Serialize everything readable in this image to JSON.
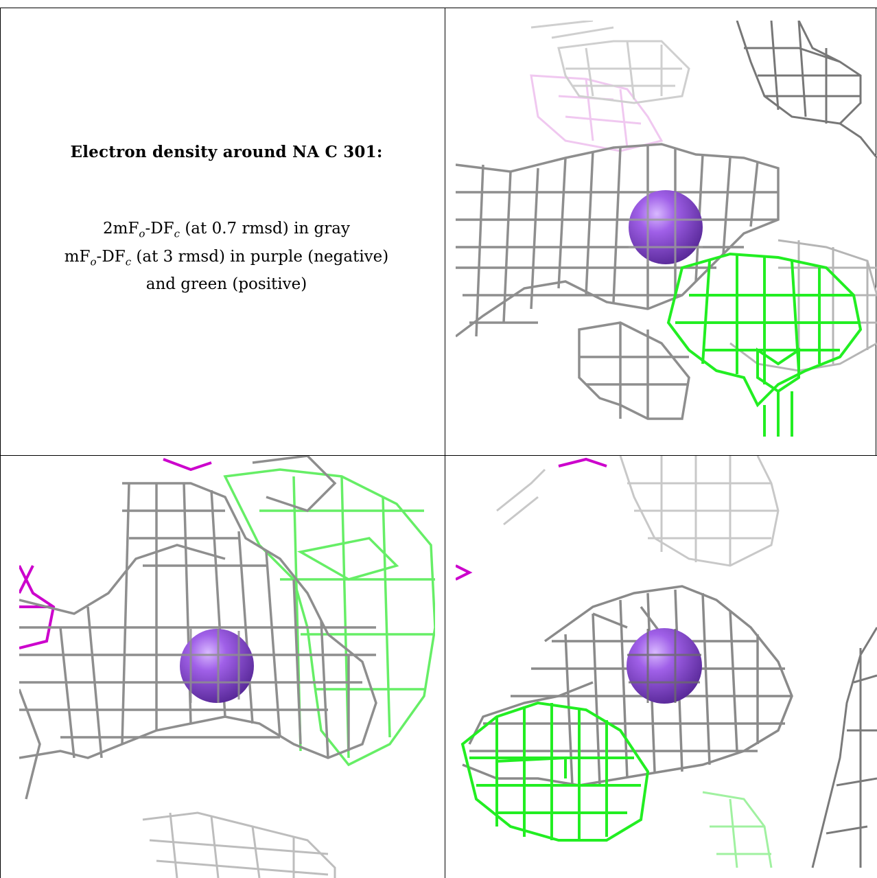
{
  "caption": {
    "title": "Electron density around NA C 301:",
    "line1_prefix": "2mF",
    "line1_sub1": "o",
    "line1_mid": "-DF",
    "line1_sub2": "c",
    "line1_suffix": " (at 0.7 rmsd) in gray",
    "line2_prefix": "mF",
    "line2_sub1": "o",
    "line2_mid": "-DF",
    "line2_sub2": "c",
    "line2_suffix": " (at 3 rmsd) in purple (negative)",
    "line3": "and green (positive)"
  },
  "colors": {
    "density_2fofc": "#8f8f8f",
    "density_2fofc_dark": "#555555",
    "density_fofc_negative": "#cc00cc",
    "density_fofc_positive": "#22ee22",
    "sodium_atom": "#9050d8"
  },
  "panels": [
    {
      "view": "top-right",
      "atom": "NA C 301"
    },
    {
      "view": "bottom-left",
      "atom": "NA C 301"
    },
    {
      "view": "bottom-right",
      "atom": "NA C 301"
    }
  ]
}
